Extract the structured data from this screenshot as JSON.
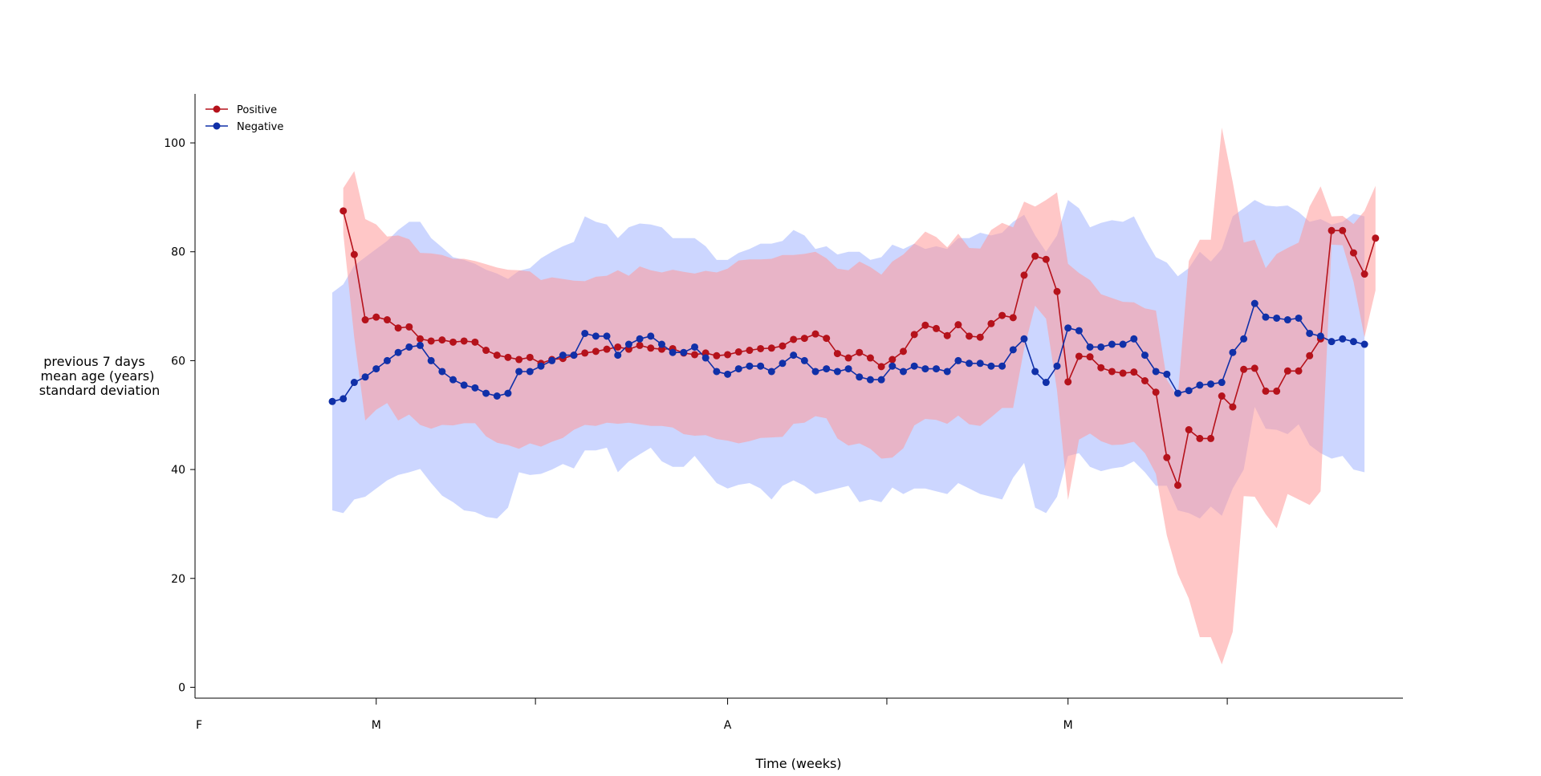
{
  "chart_data": {
    "type": "line",
    "title": "",
    "xlabel": "Time (weeks)",
    "ylabel_lines": [
      "previous 7 days",
      "mean age (years)",
      "standard deviation"
    ],
    "xlim": [
      0,
      110
    ],
    "ylim": [
      -2,
      109
    ],
    "yticks": [
      0,
      20,
      40,
      60,
      80,
      100
    ],
    "xticks": [
      {
        "x": 0,
        "label": "F"
      },
      {
        "x": 16.5,
        "label": "M"
      },
      {
        "x": 31,
        "label": ""
      },
      {
        "x": 48.5,
        "label": "A"
      },
      {
        "x": 63,
        "label": ""
      },
      {
        "x": 79.5,
        "label": "M"
      },
      {
        "x": 94,
        "label": ""
      }
    ],
    "legend": {
      "position": "top-left"
    },
    "series": [
      {
        "name": "Positive",
        "color": "#b5121b",
        "band_color": "#ff9999",
        "x_start": 13.5,
        "mean": [
          87.5,
          79.5,
          67.5,
          68,
          67.5,
          66,
          66.2,
          64,
          63.6,
          63.8,
          63.4,
          63.6,
          63.4,
          61.9,
          61,
          60.6,
          60.2,
          60.6,
          59.5,
          60.2,
          60.4,
          61,
          61.4,
          61.7,
          62.1,
          62.5,
          62.1,
          62.8,
          62.3,
          62.1,
          62.2,
          61.4,
          61.1,
          61.4,
          60.9,
          61.1,
          61.6,
          61.9,
          62.2,
          62.3,
          62.7,
          63.9,
          64.1,
          64.9,
          64.1,
          61.3,
          60.5,
          61.5,
          60.5,
          58.9,
          60.2,
          61.7,
          64.8,
          66.5,
          65.9,
          64.6,
          66.6,
          64.5,
          64.3,
          66.8,
          68.3,
          67.9,
          75.7,
          79.2,
          78.6,
          72.7,
          56.1,
          60.8,
          60.7,
          58.7,
          58,
          57.7,
          57.9,
          56.3,
          54.2,
          42.2,
          37.1,
          47.3,
          45.7,
          45.7,
          53.5,
          51.5,
          58.4,
          58.6,
          54.4,
          54.4,
          58.1,
          58.1,
          60.9,
          64,
          83.9,
          83.9,
          79.8,
          75.9,
          82.5
        ],
        "sd": [
          4.2,
          15.3,
          18.5,
          17,
          15.3,
          17,
          16.1,
          15.8,
          16.1,
          15.6,
          15.3,
          15.1,
          14.9,
          15.8,
          16.1,
          16.1,
          16.4,
          15.8,
          15.3,
          15.1,
          14.6,
          13.7,
          13.2,
          13.7,
          13.5,
          14.1,
          13.5,
          14.5,
          14.3,
          14.1,
          14.5,
          14.9,
          14.9,
          15.1,
          15.3,
          15.8,
          16.8,
          16.7,
          16.4,
          16.4,
          16.7,
          15.5,
          15.5,
          15.1,
          14.7,
          15.6,
          16.1,
          16.7,
          16.7,
          16.9,
          18,
          17.8,
          16.7,
          17.2,
          16.8,
          16.2,
          16.7,
          16.2,
          16.3,
          17.2,
          17,
          16.6,
          13.5,
          9.1,
          10.9,
          18.2,
          21.7,
          15.3,
          14.1,
          13.5,
          13.5,
          13.1,
          12.8,
          13.3,
          15,
          14.3,
          16.3,
          31,
          36.5,
          36.5,
          49.3,
          41.3,
          23.3,
          23.6,
          22.6,
          25.2,
          22.6,
          23.6,
          27.4,
          28,
          2.6,
          2.7,
          5.3,
          11.6,
          9.6
        ]
      },
      {
        "name": "Negative",
        "color": "#1030a8",
        "band_color": "#a3b4ff",
        "x_start": 12.5,
        "mean": [
          52.5,
          53,
          56,
          57,
          58.5,
          60,
          61.5,
          62.5,
          62.8,
          60,
          58,
          56.5,
          55.5,
          55,
          54,
          53.5,
          54,
          58,
          58,
          59,
          60,
          61,
          61,
          65,
          64.5,
          64.5,
          61,
          63,
          64,
          64.5,
          63,
          61.5,
          61.5,
          62.5,
          60.5,
          58,
          57.5,
          58.5,
          59,
          59,
          58,
          59.5,
          61,
          60,
          58,
          58.5,
          58,
          58.5,
          57,
          56.5,
          56.5,
          59,
          58,
          59,
          58.5,
          58.5,
          58,
          60,
          59.5,
          59.5,
          59,
          59,
          62,
          64,
          58,
          56,
          59,
          66,
          65.5,
          62.5,
          62.5,
          63,
          63,
          64,
          61,
          58,
          57.5,
          54,
          54.5,
          55.5,
          55.7,
          56,
          61.5,
          64,
          70.5,
          68,
          67.8,
          67.5,
          67.8,
          65,
          64.5,
          63.5,
          64,
          63.5,
          63
        ],
        "sd": [
          20,
          21,
          21.5,
          22,
          22,
          22,
          22.5,
          23,
          22.7,
          22.5,
          22.8,
          22.5,
          23,
          22.8,
          22.7,
          22.5,
          21,
          18.5,
          19,
          19.8,
          20,
          20,
          20.8,
          21.5,
          21,
          20.5,
          21.5,
          21.5,
          21.2,
          20.5,
          21.5,
          21,
          21,
          20,
          20.5,
          20.5,
          21,
          21.3,
          21.5,
          22.5,
          23.5,
          22.5,
          23,
          23,
          22.5,
          22.5,
          21.5,
          21.5,
          23,
          22,
          22.5,
          22.3,
          22.5,
          22.5,
          22,
          22.5,
          22.5,
          22.5,
          23,
          24,
          24,
          24.5,
          23.5,
          22.8,
          25,
          24,
          24,
          23.5,
          22.5,
          22,
          22.8,
          22.8,
          22.5,
          22.5,
          21.5,
          21,
          20.5,
          21.5,
          22.5,
          24.5,
          22.5,
          24.5,
          25,
          24,
          19,
          20.5,
          20.5,
          21,
          19.5,
          20.5,
          21.5,
          21.5,
          21.5,
          23.5,
          23.5
        ]
      }
    ]
  }
}
